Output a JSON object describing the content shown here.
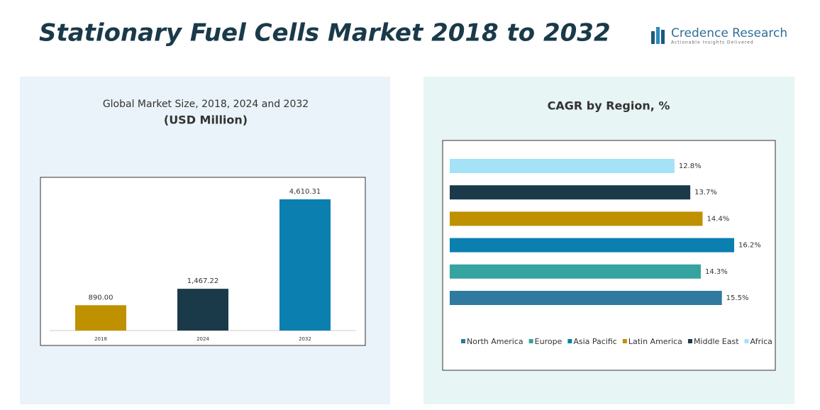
{
  "header": {
    "title": "Stationary Fuel Cells Market 2018 to 2032",
    "brand": "Credence Research",
    "tagline": "Actionable Insights Delivered"
  },
  "chart_data": [
    {
      "type": "bar",
      "title": "Global Market Size, 2018, 2024 and 2032",
      "subtitle": "(USD Million)",
      "categories": [
        "2018",
        "2024",
        "2032"
      ],
      "values": [
        890,
        1467.22,
        4610.31
      ],
      "value_labels": [
        "890.00",
        "1,467.22",
        "4,610.31"
      ],
      "colors": [
        "#bf9000",
        "#1a3a4a",
        "#0a7fb0"
      ]
    },
    {
      "type": "barh",
      "title": "CAGR by Region, %",
      "categories": [
        "North America",
        "Europe",
        "Asia Pacific",
        "Latin America",
        "Middle East",
        "Africa"
      ],
      "values": [
        15.5,
        14.3,
        16.2,
        14.4,
        13.7,
        12.8
      ],
      "value_labels": [
        "15.5%",
        "14.3%",
        "16.2%",
        "14.4%",
        "13.7%",
        "12.8%"
      ],
      "colors": [
        "#2f7a9e",
        "#35a3a0",
        "#0a7fb0",
        "#bf9000",
        "#1a3a4a",
        "#a3e2f7"
      ],
      "legend": "bottom"
    }
  ]
}
